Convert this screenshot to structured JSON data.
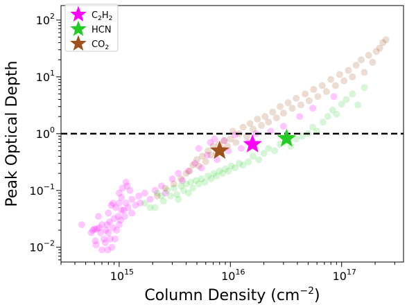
{
  "chart_data": {
    "type": "scatter",
    "xscale": "log",
    "yscale": "log",
    "xlim": [
      300000000000000.0,
      3.6e+17
    ],
    "ylim": [
      0.0055,
      180
    ],
    "xlabel_main": "Column Density (cm",
    "xlabel_sup": "−2",
    "xlabel_tail": ")",
    "ylabel": "Peak Optical Depth",
    "x_ticks": [
      {
        "value": 1000000000000000.0,
        "base": "10",
        "exp": "15"
      },
      {
        "value": 1e+16,
        "base": "10",
        "exp": "16"
      },
      {
        "value": 1e+17,
        "base": "10",
        "exp": "17"
      }
    ],
    "y_ticks": [
      {
        "value": 0.01,
        "base": "10",
        "exp": "−2"
      },
      {
        "value": 0.1,
        "base": "10",
        "exp": "−1"
      },
      {
        "value": 1,
        "base": "10",
        "exp": "0"
      },
      {
        "value": 10,
        "base": "10",
        "exp": "1"
      },
      {
        "value": 100,
        "base": "10",
        "exp": "2"
      }
    ],
    "reference_line": {
      "y": 1,
      "style": "dashed",
      "color": "#000000"
    },
    "legend": {
      "placement": "top-left",
      "entries": [
        {
          "id": "c2h2",
          "parts": [
            {
              "t": "C",
              "s": "n"
            },
            {
              "t": "2",
              "s": "sub"
            },
            {
              "t": "H",
              "s": "n"
            },
            {
              "t": "2",
              "s": "sub"
            }
          ],
          "color": "#ff00ff"
        },
        {
          "id": "hcn",
          "parts": [
            {
              "t": "HCN",
              "s": "n"
            }
          ],
          "color": "#22cc22"
        },
        {
          "id": "co2",
          "parts": [
            {
              "t": "CO",
              "s": "n"
            },
            {
              "t": "2",
              "s": "sub"
            }
          ],
          "color": "#a0521c"
        }
      ]
    },
    "series": [
      {
        "name": "C2H2",
        "color": "#ff00ff",
        "alpha": 0.22,
        "points": [
          [
            460000000000000.0,
            0.025
          ],
          [
            560000000000000.0,
            0.018
          ],
          [
            580000000000000.0,
            0.02
          ],
          [
            600000000000000.0,
            0.021
          ],
          [
            610000000000000.0,
            0.013
          ],
          [
            620000000000000.0,
            0.011
          ],
          [
            630000000000000.0,
            0.021
          ],
          [
            650000000000000.0,
            0.035
          ],
          [
            660000000000000.0,
            0.022
          ],
          [
            680000000000000.0,
            0.018
          ],
          [
            700000000000000.0,
            0.009
          ],
          [
            700000000000000.0,
            0.025
          ],
          [
            730000000000000.0,
            0.014
          ],
          [
            750000000000000.0,
            0.012
          ],
          [
            760000000000000.0,
            0.02
          ],
          [
            780000000000000.0,
            0.025
          ],
          [
            790000000000000.0,
            0.009
          ],
          [
            800000000000000.0,
            0.04
          ],
          [
            800000000000000.0,
            0.018
          ],
          [
            820000000000000.0,
            0.028
          ],
          [
            830000000000000.0,
            0.014
          ],
          [
            850000000000000.0,
            0.055
          ],
          [
            860000000000000.0,
            0.01
          ],
          [
            880000000000000.0,
            0.022
          ],
          [
            880000000000000.0,
            0.06
          ],
          [
            900000000000000.0,
            0.032
          ],
          [
            920000000000000.0,
            0.014
          ],
          [
            930000000000000.0,
            0.05
          ],
          [
            950000000000000.0,
            0.02
          ],
          [
            980000000000000.0,
            0.035
          ],
          [
            1000000000000000.0,
            0.025
          ],
          [
            1000000000000000.0,
            0.06
          ],
          [
            1000000000000000.0,
            0.09
          ],
          [
            1030000000000000.0,
            0.03
          ],
          [
            1050000000000000.0,
            0.045
          ],
          [
            1050000000000000.0,
            0.075
          ],
          [
            1070000000000000.0,
            0.11
          ],
          [
            1100000000000000.0,
            0.045
          ],
          [
            1120000000000000.0,
            0.035
          ],
          [
            1150000000000000.0,
            0.06
          ],
          [
            1150000000000000.0,
            0.14
          ],
          [
            1180000000000000.0,
            0.12
          ],
          [
            1200000000000000.0,
            0.05
          ],
          [
            1250000000000000.0,
            0.1
          ],
          [
            1300000000000000.0,
            0.04
          ],
          [
            1300000000000000.0,
            0.07
          ],
          [
            1400000000000000.0,
            0.055
          ],
          [
            1500000000000000.0,
            0.08
          ],
          [
            1550000000000000.0,
            0.06
          ],
          [
            1700000000000000.0,
            0.09
          ],
          [
            1900000000000000.0,
            0.07
          ],
          [
            2100000000000000.0,
            0.1
          ],
          [
            2400000000000000.0,
            0.12
          ],
          [
            2600000000000000.0,
            0.09
          ],
          [
            3000000000000000.0,
            0.16
          ],
          [
            3400000000000000.0,
            0.2
          ],
          [
            3700000000000000.0,
            0.15
          ],
          [
            4200000000000000.0,
            0.22
          ],
          [
            4800000000000000.0,
            0.3
          ],
          [
            5200000000000000.0,
            0.55
          ],
          [
            5500000000000000.0,
            0.25
          ],
          [
            6200000000000000.0,
            0.42
          ],
          [
            6600000000000000.0,
            0.7
          ],
          [
            7200000000000000.0,
            0.8
          ],
          [
            7600000000000000.0,
            0.35
          ],
          [
            8800000000000000.0,
            0.75
          ],
          [
            9600000000000000.0,
            0.5
          ],
          [
            1.1e+16,
            0.95
          ],
          [
            1.25e+16,
            0.55
          ],
          [
            1.45e+16,
            0.7
          ],
          [
            1.7e+16,
            1.0
          ],
          [
            2.3e+16,
            1.1
          ],
          [
            3e+16,
            1.35
          ],
          [
            4.2e+16,
            2.0
          ],
          [
            5.5e+16,
            2.8
          ],
          [
            8.5e+16,
            4.5
          ]
        ]
      },
      {
        "name": "HCN",
        "color": "#22cc22",
        "alpha": 0.18,
        "points": [
          [
            1700000000000000.0,
            0.06
          ],
          [
            1900000000000000.0,
            0.05
          ],
          [
            2100000000000000.0,
            0.05
          ],
          [
            2200000000000000.0,
            0.09
          ],
          [
            2400000000000000.0,
            0.08
          ],
          [
            2500000000000000.0,
            0.065
          ],
          [
            2700000000000000.0,
            0.1
          ],
          [
            2900000000000000.0,
            0.08
          ],
          [
            3100000000000000.0,
            0.11
          ],
          [
            3300000000000000.0,
            0.085
          ],
          [
            3400000000000000.0,
            0.07
          ],
          [
            3600000000000000.0,
            0.12
          ],
          [
            3800000000000000.0,
            0.1
          ],
          [
            4000000000000000.0,
            0.13
          ],
          [
            4200000000000000.0,
            0.09
          ],
          [
            4400000000000000.0,
            0.14
          ],
          [
            4600000000000000.0,
            0.11
          ],
          [
            4900000000000000.0,
            0.15
          ],
          [
            5200000000000000.0,
            0.13
          ],
          [
            5500000000000000.0,
            0.16
          ],
          [
            5900000000000000.0,
            0.14
          ],
          [
            6300000000000000.0,
            0.18
          ],
          [
            6700000000000000.0,
            0.16
          ],
          [
            7100000000000000.0,
            0.2
          ],
          [
            7500000000000000.0,
            0.18
          ],
          [
            8000000000000000.0,
            0.22
          ],
          [
            8500000000000000.0,
            0.2
          ],
          [
            9000000000000000.0,
            0.24
          ],
          [
            9600000000000000.0,
            0.22
          ],
          [
            1.02e+16,
            0.27
          ],
          [
            1.1e+16,
            0.25
          ],
          [
            1.2e+16,
            0.3
          ],
          [
            1.3e+16,
            0.28
          ],
          [
            1.45e+16,
            0.32
          ],
          [
            1.6e+16,
            0.4
          ],
          [
            1.8e+16,
            0.35
          ],
          [
            2e+16,
            0.45
          ],
          [
            2.2e+16,
            0.55
          ],
          [
            2.5e+16,
            0.5
          ],
          [
            2.8e+16,
            0.65
          ],
          [
            3.1e+16,
            0.72
          ],
          [
            3.5e+16,
            0.6
          ],
          [
            3.9e+16,
            0.8
          ],
          [
            4.4e+16,
            0.9
          ],
          [
            5e+16,
            1.0
          ],
          [
            5.5e+16,
            1.3
          ],
          [
            6e+16,
            1.1
          ],
          [
            6.8e+16,
            1.6
          ],
          [
            7.5e+16,
            2.0
          ],
          [
            8.3e+16,
            2.6
          ],
          [
            9e+16,
            2.2
          ],
          [
            1e+17,
            3.3
          ],
          [
            1.1e+17,
            4.0
          ],
          [
            1.25e+17,
            5.0
          ],
          [
            1.4e+17,
            3.2
          ],
          [
            1.6e+17,
            6.5
          ]
        ]
      },
      {
        "name": "CO2",
        "color": "#a0521c",
        "alpha": 0.2,
        "points": [
          [
            2200000000000000.0,
            0.08
          ],
          [
            2600000000000000.0,
            0.11
          ],
          [
            3100000000000000.0,
            0.13
          ],
          [
            3600000000000000.0,
            0.16
          ],
          [
            4000000000000000.0,
            0.2
          ],
          [
            4300000000000000.0,
            0.22
          ],
          [
            4600000000000000.0,
            0.28
          ],
          [
            5000000000000000.0,
            0.35
          ],
          [
            5200000000000000.0,
            0.27
          ],
          [
            5600000000000000.0,
            0.4
          ],
          [
            6000000000000000.0,
            0.32
          ],
          [
            6300000000000000.0,
            0.5
          ],
          [
            6700000000000000.0,
            0.42
          ],
          [
            7000000000000000.0,
            0.6
          ],
          [
            7500000000000000.0,
            0.45
          ],
          [
            7900000000000000.0,
            0.65
          ],
          [
            8300000000000000.0,
            0.55
          ],
          [
            8800000000000000.0,
            0.75
          ],
          [
            9400000000000000.0,
            0.6
          ],
          [
            1e+16,
            0.8
          ],
          [
            1.05e+16,
            1.1
          ],
          [
            1.12e+16,
            0.7
          ],
          [
            1.2e+16,
            1.0
          ],
          [
            1.3e+16,
            1.3
          ],
          [
            1.4e+16,
            0.9
          ],
          [
            1.5e+16,
            1.5
          ],
          [
            1.6e+16,
            1.2
          ],
          [
            1.75e+16,
            1.8
          ],
          [
            1.9e+16,
            1.4
          ],
          [
            2.05e+16,
            2.0
          ],
          [
            2.2e+16,
            1.6
          ],
          [
            2.4e+16,
            2.4
          ],
          [
            2.6e+16,
            1.9
          ],
          [
            2.8e+16,
            3.0
          ],
          [
            3e+16,
            2.3
          ],
          [
            3.3e+16,
            3.5
          ],
          [
            3.6e+16,
            2.8
          ],
          [
            3.9e+16,
            4.2
          ],
          [
            4.3e+16,
            3.2
          ],
          [
            4.7e+16,
            5.0
          ],
          [
            5.1e+16,
            3.8
          ],
          [
            5.6e+16,
            6.0
          ],
          [
            6.1e+16,
            4.5
          ],
          [
            6.7e+16,
            7.0
          ],
          [
            7.3e+16,
            5.5
          ],
          [
            8e+16,
            9.0
          ],
          [
            8.8e+16,
            7.0
          ],
          [
            9.6e+16,
            11
          ],
          [
            1.05e+17,
            8.5
          ],
          [
            1.15e+17,
            13
          ],
          [
            1.25e+17,
            10
          ],
          [
            1.35e+17,
            16
          ],
          [
            1.5e+17,
            20
          ],
          [
            1.6e+17,
            12
          ],
          [
            1.75e+17,
            24
          ],
          [
            1.9e+17,
            18
          ],
          [
            2.05e+17,
            28
          ],
          [
            2.2e+17,
            32
          ],
          [
            2.35e+17,
            40
          ],
          [
            2.5e+17,
            45
          ]
        ]
      }
    ],
    "markers": [
      {
        "species": "CO2",
        "x": 8000000000000000.0,
        "y": 0.5,
        "color": "#a0521c"
      },
      {
        "species": "C2H2",
        "x": 1.58e+16,
        "y": 0.65,
        "color": "#ff00ff"
      },
      {
        "species": "HCN",
        "x": 3.2e+16,
        "y": 0.82,
        "color": "#22cc22"
      }
    ]
  }
}
